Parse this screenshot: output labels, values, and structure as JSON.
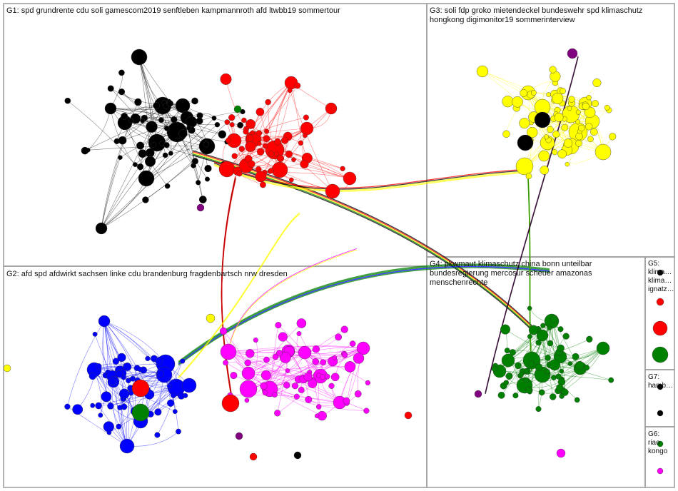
{
  "groups": {
    "g1": {
      "label": "G1: spd grundrente cdu soli gamescom2019 senftleben kampmannroth afd ltwbb19 sommertour",
      "color": "#000000",
      "accent": "#ff0000"
    },
    "g2": {
      "label": "G2: afd spd afdwirkt sachsen linke cdu brandenburg fragdenbartsch nrw dresden",
      "color": "#0000ff",
      "accent": "#ff00ff"
    },
    "g3": {
      "label": "G3: soli fdp groko mietendeckel bundeswehr spd klimaschutz\nhongkong digimonitor19 sommerinterview",
      "color": "#ffff00"
    },
    "g4": {
      "label": "G4: pkwmaut klimaschutz china bonn unteilbar\nbundesregierung mercosur scheuer amazonas\nmenschenrechte",
      "color": "#008000"
    },
    "g5": {
      "label": "G5:\nklima…\nklima…\nignatz…",
      "color": "#ff0000"
    },
    "g6": {
      "label": "G6:\nriao\nkongo",
      "color": "#ff00ff"
    },
    "g7": {
      "label": "G7:\nhamb…",
      "color": "#000000"
    }
  },
  "colors": {
    "frame": "#9a9a9a",
    "black": "#000000",
    "red": "#ff0000",
    "yellow": "#ffff00",
    "blue": "#0000ff",
    "magenta": "#ff00ff",
    "green": "#008000",
    "purple": "#800080"
  }
}
